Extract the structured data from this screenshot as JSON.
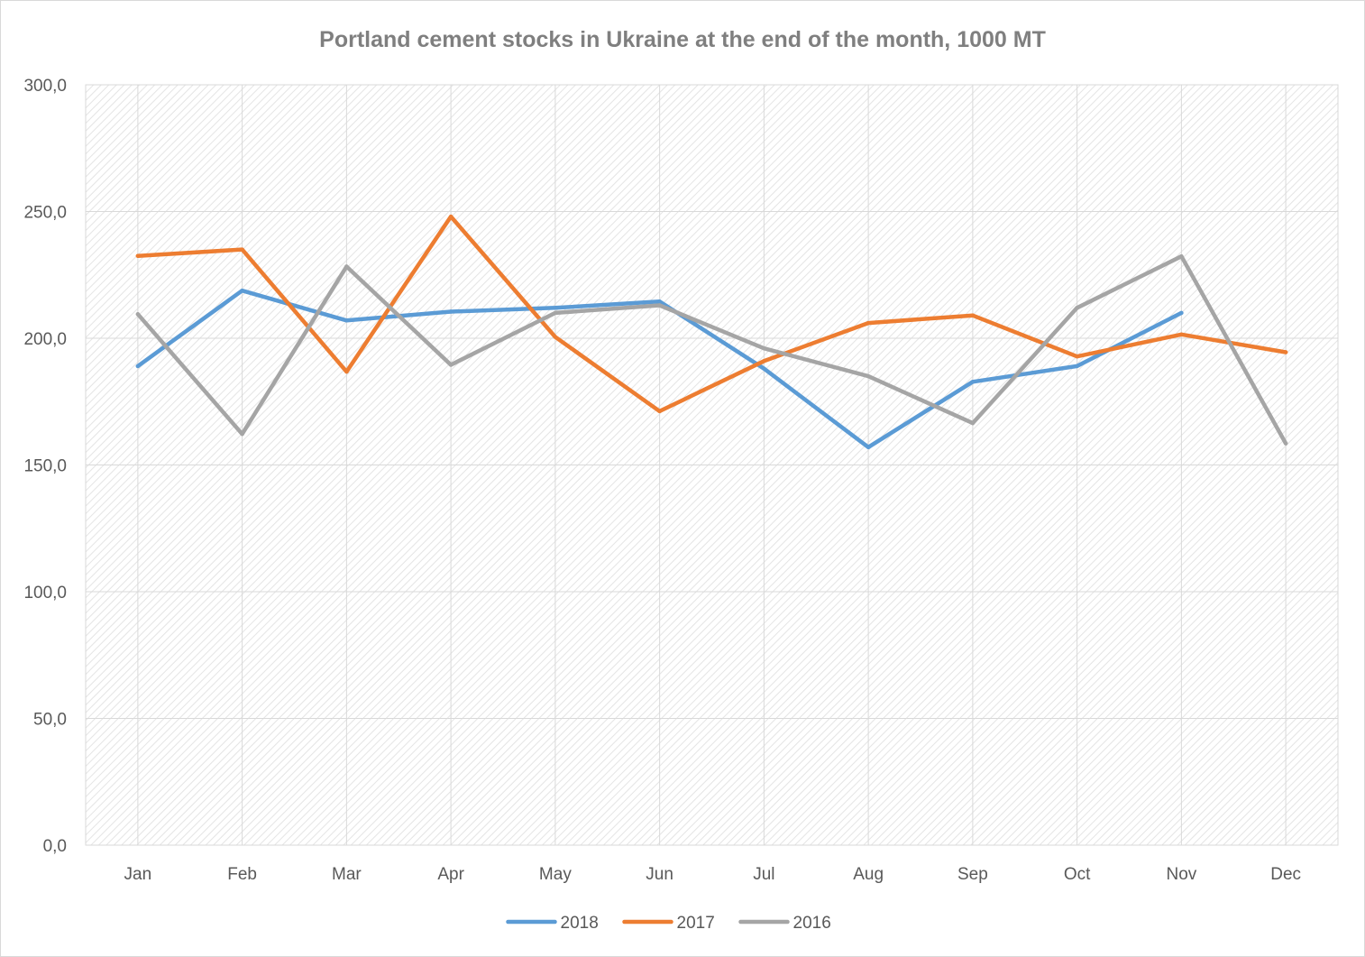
{
  "chart_data": {
    "type": "line",
    "title": "Portland cement stocks in Ukraine at the end of the month, 1000 MT",
    "xlabel": "",
    "ylabel": "",
    "categories": [
      "Jan",
      "Feb",
      "Mar",
      "Apr",
      "May",
      "Jun",
      "Jul",
      "Aug",
      "Sep",
      "Oct",
      "Nov",
      "Dec"
    ],
    "ylim": [
      0,
      300
    ],
    "yticks": [
      "0,0",
      "50,0",
      "100,0",
      "150,0",
      "200,0",
      "250,0",
      "300,0"
    ],
    "grid": true,
    "legend_position": "bottom",
    "series": [
      {
        "name": "2018",
        "color": "#5b9bd5",
        "values": [
          189.0,
          218.8,
          207.0,
          210.5,
          212.0,
          214.5,
          188.0,
          157.0,
          182.8,
          189.0,
          210.0,
          null
        ]
      },
      {
        "name": "2017",
        "color": "#ed7d31",
        "values": [
          232.5,
          235.0,
          186.8,
          248.0,
          200.5,
          171.2,
          191.0,
          206.0,
          209.0,
          192.8,
          201.5,
          194.5
        ]
      },
      {
        "name": "2016",
        "color": "#a5a5a5",
        "values": [
          209.5,
          162.2,
          228.3,
          189.5,
          210.0,
          213.0,
          196.0,
          185.0,
          166.5,
          212.0,
          232.3,
          158.5
        ]
      }
    ]
  }
}
